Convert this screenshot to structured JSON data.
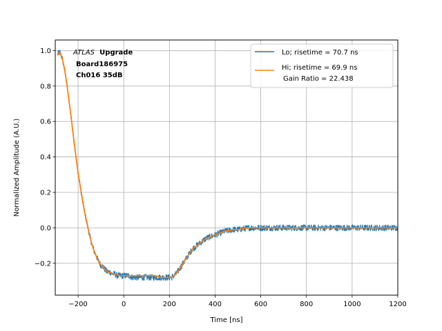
{
  "chart_data": {
    "type": "line",
    "title": "",
    "xlabel": "Time [ns]",
    "ylabel": "Normalized Amplitude (A.U.)",
    "xlim": [
      -300,
      1200
    ],
    "ylim": [
      -0.38,
      1.06
    ],
    "xticks": [
      -200,
      0,
      200,
      400,
      600,
      800,
      1000,
      1200
    ],
    "yticks": [
      -0.2,
      0.0,
      0.2,
      0.4,
      0.6,
      0.8,
      1.0
    ],
    "xtick_labels": [
      "−200",
      "0",
      "200",
      "400",
      "600",
      "800",
      "1000",
      "1200"
    ],
    "ytick_labels": [
      "−0.2",
      "0.0",
      "0.2",
      "0.4",
      "0.6",
      "0.8",
      "1.0"
    ],
    "grid": true,
    "legend_position": "top-right",
    "annotation": {
      "atlas": "ATLAS",
      "upgrade": "Upgrade",
      "board": "Board186975",
      "channel": "Ch016 35dB"
    },
    "series": [
      {
        "name": "Lo; risetime = 70.7 ns",
        "color": "#1f77b4",
        "noisy": true,
        "x": [
          -290,
          -280,
          -270,
          -260,
          -250,
          -240,
          -230,
          -220,
          -210,
          -200,
          -190,
          -180,
          -170,
          -160,
          -150,
          -140,
          -130,
          -120,
          -110,
          -100,
          -90,
          -80,
          -70,
          -60,
          -50,
          -40,
          -30,
          -20,
          -10,
          0,
          20,
          40,
          60,
          80,
          100,
          120,
          140,
          160,
          180,
          200,
          210,
          220,
          230,
          240,
          250,
          260,
          270,
          280,
          290,
          300,
          320,
          340,
          360,
          380,
          400,
          420,
          440,
          460,
          480,
          500,
          550,
          600,
          650,
          700,
          750,
          800,
          850,
          900,
          950,
          1000,
          1050,
          1100,
          1150,
          1200
        ],
        "y": [
          0.98,
          0.99,
          0.96,
          0.9,
          0.82,
          0.72,
          0.62,
          0.51,
          0.41,
          0.31,
          0.23,
          0.15,
          0.08,
          0.02,
          -0.04,
          -0.09,
          -0.13,
          -0.16,
          -0.19,
          -0.21,
          -0.22,
          -0.24,
          -0.25,
          -0.25,
          -0.26,
          -0.26,
          -0.27,
          -0.27,
          -0.27,
          -0.27,
          -0.27,
          -0.28,
          -0.28,
          -0.28,
          -0.28,
          -0.28,
          -0.28,
          -0.28,
          -0.28,
          -0.28,
          -0.28,
          -0.27,
          -0.26,
          -0.24,
          -0.22,
          -0.2,
          -0.18,
          -0.16,
          -0.14,
          -0.12,
          -0.1,
          -0.08,
          -0.06,
          -0.05,
          -0.04,
          -0.03,
          -0.02,
          -0.015,
          -0.01,
          -0.01,
          0.0,
          0.0,
          0.0,
          0.0,
          0.0,
          0.0,
          0.0,
          0.0,
          0.0,
          0.0,
          0.0,
          0.0,
          0.0,
          0.0
        ]
      },
      {
        "name": "Hi; risetime = 69.9 ns",
        "name_line2": "Gain Ratio = 22.438",
        "color": "#ff7f0e",
        "noisy": false,
        "x": [
          -290,
          -280,
          -270,
          -260,
          -250,
          -240,
          -230,
          -220,
          -210,
          -200,
          -190,
          -180,
          -170,
          -160,
          -150,
          -140,
          -130,
          -120,
          -110,
          -100,
          -90,
          -80,
          -70,
          -60,
          -50,
          -40,
          -30,
          -20,
          -10,
          0,
          20,
          40,
          60,
          80,
          100,
          120,
          140,
          160,
          180,
          200,
          210,
          220,
          230,
          240,
          250,
          260,
          270,
          280,
          290,
          300,
          320,
          340,
          360,
          380,
          400,
          420,
          440,
          460,
          480,
          500,
          550,
          600,
          650,
          700,
          750,
          800,
          850,
          900,
          950,
          1000,
          1050,
          1100,
          1150,
          1200
        ],
        "y": [
          0.98,
          0.99,
          0.96,
          0.9,
          0.82,
          0.72,
          0.62,
          0.51,
          0.41,
          0.31,
          0.23,
          0.15,
          0.08,
          0.02,
          -0.04,
          -0.09,
          -0.13,
          -0.16,
          -0.19,
          -0.21,
          -0.22,
          -0.24,
          -0.25,
          -0.25,
          -0.26,
          -0.26,
          -0.26,
          -0.27,
          -0.27,
          -0.27,
          -0.27,
          -0.27,
          -0.27,
          -0.27,
          -0.27,
          -0.27,
          -0.27,
          -0.28,
          -0.28,
          -0.28,
          -0.28,
          -0.27,
          -0.26,
          -0.24,
          -0.22,
          -0.2,
          -0.18,
          -0.16,
          -0.14,
          -0.12,
          -0.1,
          -0.08,
          -0.06,
          -0.05,
          -0.04,
          -0.03,
          -0.02,
          -0.015,
          -0.01,
          -0.01,
          0.0,
          0.0,
          0.0,
          0.0,
          0.0,
          0.0,
          0.0,
          0.0,
          0.0,
          0.0,
          0.0,
          0.0,
          0.0,
          0.0
        ]
      }
    ]
  }
}
